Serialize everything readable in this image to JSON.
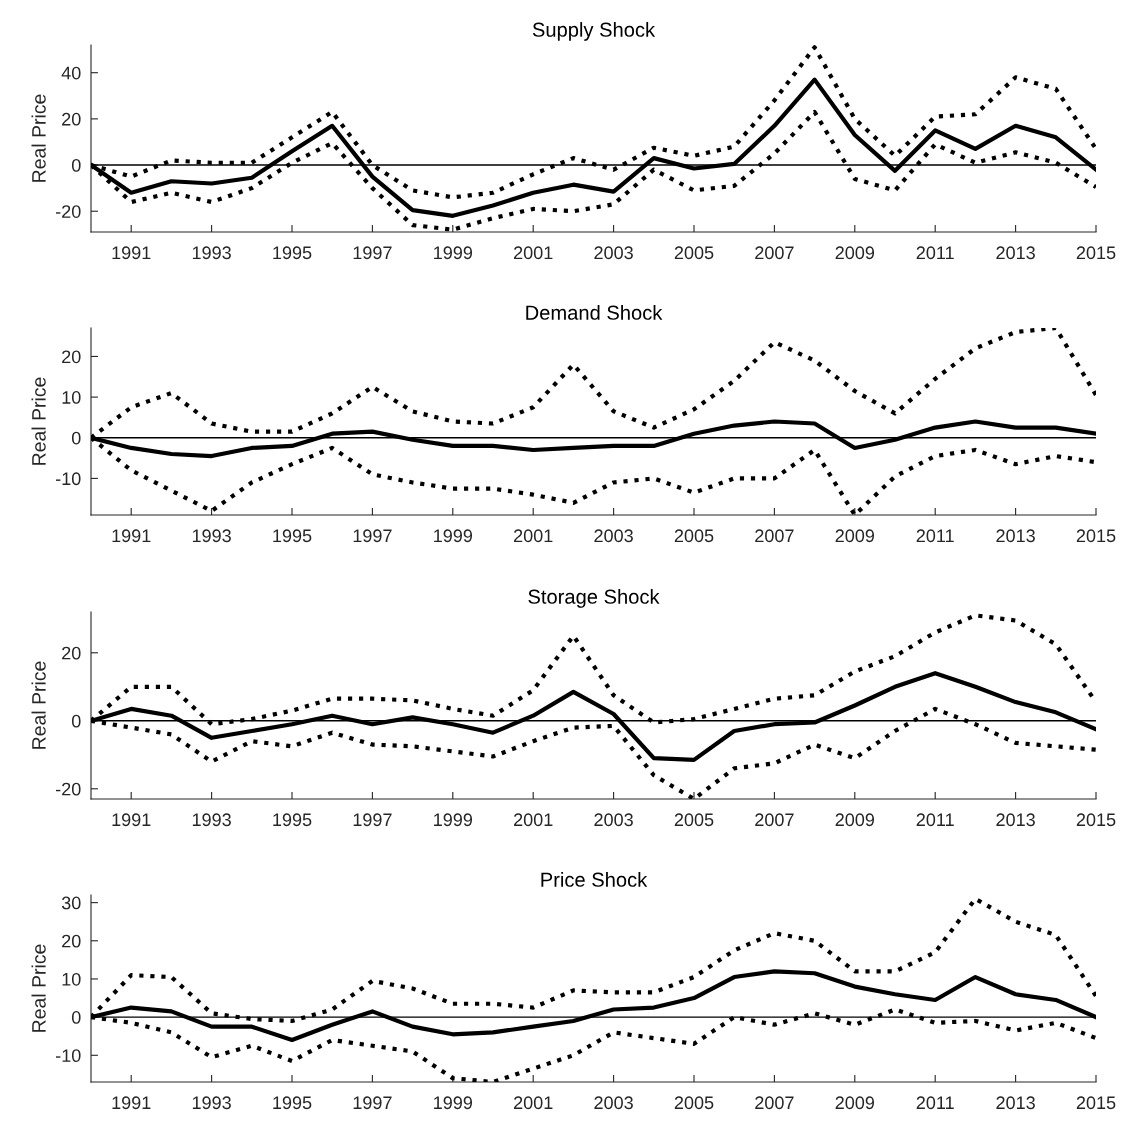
{
  "chart_data": [
    {
      "type": "line",
      "title": "Supply Shock",
      "ylabel": "Real Price",
      "x": [
        1990,
        1991,
        1992,
        1993,
        1994,
        1995,
        1996,
        1997,
        1998,
        1999,
        2000,
        2001,
        2002,
        2003,
        2004,
        2005,
        2006,
        2007,
        2008,
        2009,
        2010,
        2011,
        2012,
        2013,
        2014,
        2015
      ],
      "xlim": [
        1990,
        2015
      ],
      "xticks": [
        1991,
        1993,
        1995,
        1997,
        1999,
        2001,
        2003,
        2005,
        2007,
        2009,
        2011,
        2013,
        2015
      ],
      "ylim": [
        -29,
        52
      ],
      "yticks": [
        -20,
        0,
        20,
        40
      ],
      "grid": false,
      "ref_lines": [
        {
          "axis": "y",
          "value": 0,
          "color": "#000000",
          "line_style": "solid"
        }
      ],
      "series": [
        {
          "color": "#000000",
          "line_style": "solid",
          "values": [
            0,
            -12,
            -7,
            -8,
            -5.5,
            6,
            17,
            -5,
            -19.5,
            -22,
            -17.5,
            -12,
            -8.5,
            -11.5,
            3,
            -1.5,
            0.5,
            17,
            37,
            13,
            -2.5,
            15,
            7,
            17,
            12,
            -2
          ]
        },
        {
          "color": "#000000",
          "line_style": "dotted",
          "values": [
            0,
            -5,
            2,
            1,
            1,
            12,
            23,
            0,
            -11,
            -14,
            -12,
            -4,
            3,
            -2,
            7.5,
            4,
            8,
            28,
            51,
            20,
            4,
            21,
            22,
            38,
            33,
            7
          ]
        },
        {
          "color": "#000000",
          "line_style": "dotted",
          "values": [
            0,
            -16,
            -12,
            -16,
            -10,
            1,
            9.5,
            -10,
            -26,
            -28,
            -23,
            -19,
            -20,
            -17,
            -2,
            -11,
            -9,
            5,
            23,
            -6,
            -11,
            9,
            1,
            5.5,
            1,
            -9.5
          ]
        }
      ]
    },
    {
      "type": "line",
      "title": "Demand Shock",
      "ylabel": "Real Price",
      "x": [
        1990,
        1991,
        1992,
        1993,
        1994,
        1995,
        1996,
        1997,
        1998,
        1999,
        2000,
        2001,
        2002,
        2003,
        2004,
        2005,
        2006,
        2007,
        2008,
        2009,
        2010,
        2011,
        2012,
        2013,
        2014,
        2015
      ],
      "xlim": [
        1990,
        2015
      ],
      "xticks": [
        1991,
        1993,
        1995,
        1997,
        1999,
        2001,
        2003,
        2005,
        2007,
        2009,
        2011,
        2013,
        2015
      ],
      "ylim": [
        -19,
        27
      ],
      "yticks": [
        -10,
        0,
        10,
        20
      ],
      "grid": false,
      "ref_lines": [
        {
          "axis": "y",
          "value": 0,
          "color": "#000000",
          "line_style": "solid"
        }
      ],
      "series": [
        {
          "color": "#000000",
          "line_style": "solid",
          "values": [
            0,
            -2.5,
            -4,
            -4.5,
            -2.5,
            -2,
            1,
            1.5,
            -0.5,
            -2,
            -2,
            -3,
            -2.5,
            -2,
            -2,
            1,
            3,
            4,
            3.5,
            -2.5,
            -0.5,
            2.5,
            4,
            2.5,
            2.5,
            1
          ]
        },
        {
          "color": "#000000",
          "line_style": "dotted",
          "values": [
            0,
            7.5,
            11,
            3.5,
            1.5,
            1.5,
            6,
            12.5,
            6.5,
            4,
            3.5,
            7.5,
            18,
            6.5,
            2.5,
            7,
            14,
            23.5,
            19,
            11.5,
            6,
            14.5,
            22,
            26,
            27,
            10.5
          ]
        },
        {
          "color": "#000000",
          "line_style": "dotted",
          "values": [
            0,
            -8,
            -13,
            -18,
            -11,
            -6.5,
            -2.5,
            -9,
            -11,
            -12.5,
            -12.5,
            -14,
            -16,
            -11,
            -10,
            -13.5,
            -10,
            -10,
            -3,
            -19,
            -9.5,
            -4.5,
            -3,
            -6.5,
            -4.5,
            -6
          ]
        }
      ]
    },
    {
      "type": "line",
      "title": "Storage Shock",
      "ylabel": "Real Price",
      "x": [
        1990,
        1991,
        1992,
        1993,
        1994,
        1995,
        1996,
        1997,
        1998,
        1999,
        2000,
        2001,
        2002,
        2003,
        2004,
        2005,
        2006,
        2007,
        2008,
        2009,
        2010,
        2011,
        2012,
        2013,
        2014,
        2015
      ],
      "xlim": [
        1990,
        2015
      ],
      "xticks": [
        1991,
        1993,
        1995,
        1997,
        1999,
        2001,
        2003,
        2005,
        2007,
        2009,
        2011,
        2013,
        2015
      ],
      "ylim": [
        -23,
        32
      ],
      "yticks": [
        -20,
        0,
        20
      ],
      "grid": false,
      "ref_lines": [
        {
          "axis": "y",
          "value": 0,
          "color": "#000000",
          "line_style": "solid"
        }
      ],
      "series": [
        {
          "color": "#000000",
          "line_style": "solid",
          "values": [
            0,
            3.5,
            1.5,
            -5,
            -3,
            -1,
            1.5,
            -1,
            1,
            -1,
            -3.5,
            1.5,
            8.5,
            2,
            -11,
            -11.5,
            -3,
            -1,
            -0.5,
            4.5,
            10,
            14,
            10,
            5.5,
            2.5,
            -2.5
          ]
        },
        {
          "color": "#000000",
          "line_style": "dotted",
          "values": [
            0,
            10,
            10,
            -1,
            0.5,
            3,
            6.5,
            6.5,
            6,
            3.5,
            1.5,
            9,
            25,
            7.5,
            -0.5,
            0.5,
            3.5,
            6.5,
            7.5,
            14.5,
            19,
            26,
            31,
            29.5,
            22.5,
            5.5
          ]
        },
        {
          "color": "#000000",
          "line_style": "dotted",
          "values": [
            0,
            -2,
            -4,
            -12,
            -6,
            -7.5,
            -3.5,
            -7,
            -7.5,
            -9,
            -10.5,
            -6,
            -2,
            -1.5,
            -16,
            -23,
            -14,
            -12.5,
            -7,
            -11,
            -3,
            3.5,
            -1,
            -6.5,
            -7.5,
            -8.5
          ]
        }
      ]
    },
    {
      "type": "line",
      "title": "Price Shock",
      "ylabel": "Real Price",
      "x": [
        1990,
        1991,
        1992,
        1993,
        1994,
        1995,
        1996,
        1997,
        1998,
        1999,
        2000,
        2001,
        2002,
        2003,
        2004,
        2005,
        2006,
        2007,
        2008,
        2009,
        2010,
        2011,
        2012,
        2013,
        2014,
        2015
      ],
      "xlim": [
        1990,
        2015
      ],
      "xticks": [
        1991,
        1993,
        1995,
        1997,
        1999,
        2001,
        2003,
        2005,
        2007,
        2009,
        2011,
        2013,
        2015
      ],
      "ylim": [
        -17,
        32
      ],
      "yticks": [
        -10,
        0,
        10,
        20,
        30
      ],
      "grid": false,
      "ref_lines": [
        {
          "axis": "y",
          "value": 0,
          "color": "#000000",
          "line_style": "solid"
        }
      ],
      "series": [
        {
          "color": "#000000",
          "line_style": "solid",
          "values": [
            0,
            2.5,
            1.5,
            -2.5,
            -2.5,
            -6,
            -2,
            1.5,
            -2.5,
            -4.5,
            -4,
            -2.5,
            -1,
            2,
            2.5,
            5,
            10.5,
            12,
            11.5,
            8,
            6,
            4.5,
            10.5,
            6,
            4.5,
            0
          ]
        },
        {
          "color": "#000000",
          "line_style": "dotted",
          "values": [
            0,
            11,
            10.5,
            1,
            -0.5,
            -1,
            2,
            9.5,
            7.5,
            3.5,
            3.5,
            2.5,
            7,
            6.5,
            6.5,
            10.5,
            17.5,
            22,
            20,
            12,
            12,
            17,
            31,
            25,
            21.5,
            5.5
          ]
        },
        {
          "color": "#000000",
          "line_style": "dotted",
          "values": [
            0,
            -1.5,
            -4,
            -10.5,
            -7.5,
            -11.5,
            -6,
            -7.5,
            -9,
            -16,
            -17,
            -13.5,
            -10,
            -4,
            -5.5,
            -7,
            0,
            -2,
            1,
            -2,
            2,
            -1.5,
            -1,
            -3.5,
            -1.5,
            -5.5
          ]
        }
      ]
    }
  ]
}
